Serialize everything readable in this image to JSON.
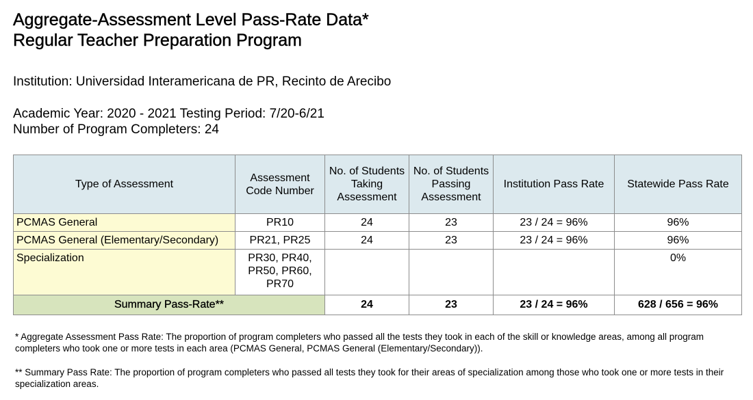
{
  "header": {
    "title_line1": "Aggregate-Assessment Level Pass-Rate Data*",
    "title_line2": "Regular Teacher Preparation Program"
  },
  "info": {
    "institution": "Institution: Universidad Interamericana de PR, Recinto de Arecibo",
    "academic_year": "Academic Year: 2020 - 2021 Testing Period: 7/20-6/21",
    "completers": "Number of Program Completers: 24"
  },
  "table": {
    "columns": [
      "Type of Assessment",
      "Assessment Code Number",
      "No. of Students Taking Assessment",
      "No. of Students Passing Assessment",
      "Institution Pass Rate",
      "Statewide Pass Rate"
    ],
    "rows": [
      {
        "type": "PCMAS General",
        "code": "PR10",
        "taking": "24",
        "passing": "23",
        "institution_rate": "23 / 24 = 96%",
        "statewide_rate": "96%"
      },
      {
        "type": "PCMAS General (Elementary/Secondary)",
        "code": "PR21, PR25",
        "taking": "24",
        "passing": "23",
        "institution_rate": "23 / 24 = 96%",
        "statewide_rate": "96%"
      },
      {
        "type": "Specialization",
        "code_lines": [
          "PR30, PR40,",
          "PR50, PR60,",
          "PR70"
        ],
        "taking": "",
        "passing": "",
        "institution_rate": "",
        "statewide_rate": "0%"
      }
    ],
    "summary": {
      "label": "Summary Pass-Rate**",
      "taking": "24",
      "passing": "23",
      "institution_rate": "23 / 24 = 96%",
      "statewide_rate": "628 / 656 = 96%"
    }
  },
  "notes": {
    "note1": "* Aggregate Assessment Pass Rate: The proportion of program completers who passed all the tests they took in each of the skill or knowledge areas, among all program completers who took one or more tests in each area (PCMAS General, PCMAS General (Elementary/Secondary)).",
    "note2": "** Summary Pass Rate: The proportion of program completers who passed all tests they took for their areas of specialization among those who took one or more tests in their specialization areas."
  }
}
